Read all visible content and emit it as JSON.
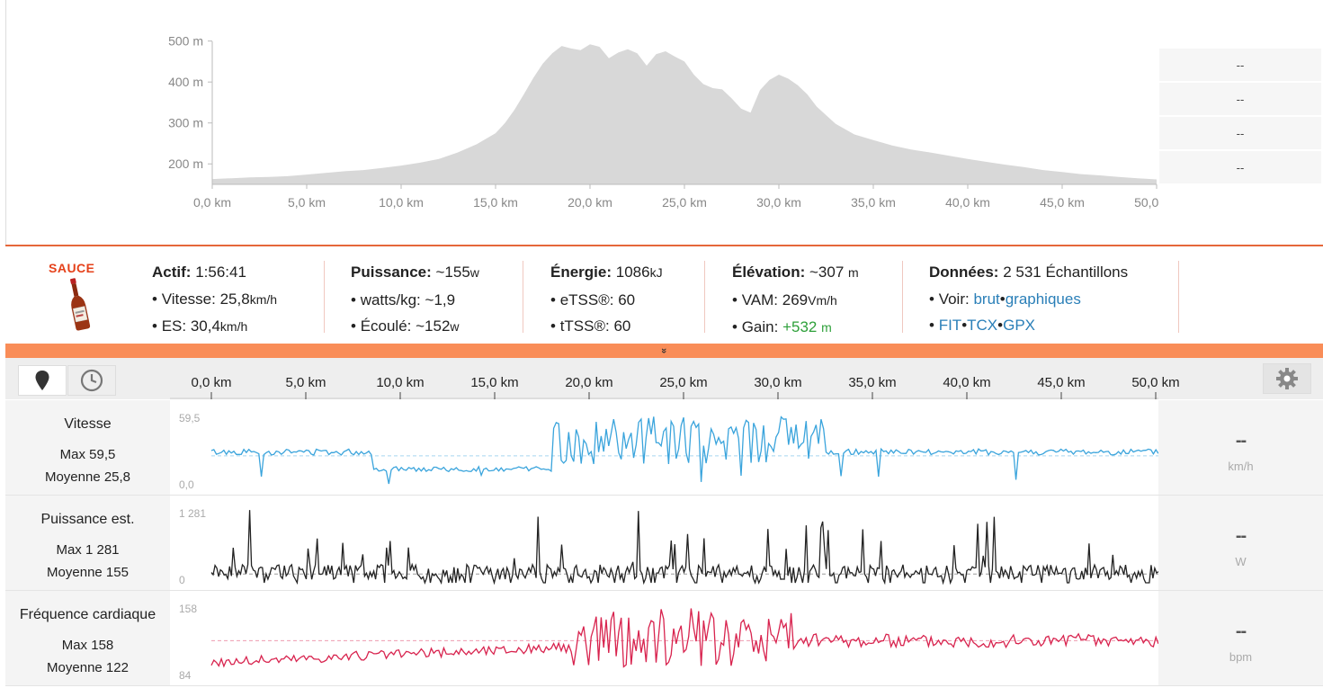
{
  "elevation": {
    "y_ticks": [
      "500 m",
      "400 m",
      "300 m",
      "200 m"
    ],
    "x_ticks": [
      "0,0 km",
      "5,0 km",
      "10,0 km",
      "15,0 km",
      "20,0 km",
      "25,0 km",
      "30,0 km",
      "35,0 km",
      "40,0 km",
      "45,0 km",
      "50,0 km"
    ],
    "side_values": [
      "--",
      "--",
      "--",
      "--"
    ]
  },
  "chart_data": [
    {
      "type": "area",
      "xlabel": "",
      "ylabel": "",
      "x_unit": "km",
      "y_unit": "m",
      "xlim": [
        0,
        50
      ],
      "ylim": [
        150,
        530
      ],
      "x": [
        0,
        1,
        2,
        3,
        4,
        5,
        6,
        7,
        8,
        9,
        10,
        11,
        12,
        13,
        14,
        15,
        15.5,
        16,
        16.5,
        17,
        17.5,
        18,
        18.5,
        19,
        19.5,
        20,
        20.5,
        21,
        21.5,
        22,
        22.5,
        23,
        23.5,
        24,
        24.5,
        25,
        25.5,
        26,
        26.5,
        27,
        27.5,
        28,
        28.5,
        29,
        29.5,
        30,
        30.5,
        31,
        31.5,
        32,
        33,
        34,
        35,
        36,
        37,
        38,
        39,
        40,
        41,
        42,
        43,
        44,
        45,
        46,
        47,
        48,
        49,
        50
      ],
      "values": [
        163,
        165,
        167,
        168,
        170,
        174,
        178,
        182,
        185,
        190,
        196,
        203,
        212,
        228,
        248,
        275,
        300,
        332,
        370,
        410,
        445,
        470,
        488,
        482,
        478,
        492,
        486,
        458,
        472,
        480,
        470,
        440,
        468,
        475,
        462,
        450,
        418,
        395,
        385,
        382,
        360,
        335,
        325,
        380,
        405,
        418,
        408,
        392,
        370,
        340,
        298,
        272,
        258,
        245,
        235,
        228,
        220,
        212,
        205,
        198,
        192,
        185,
        180,
        175,
        172,
        168,
        165,
        162
      ]
    },
    {
      "type": "line",
      "name": "Vitesse",
      "ylim": [
        0,
        59.5
      ],
      "x_unit": "km",
      "y_unit": "km/h",
      "average": 25.8,
      "max": 59.5
    },
    {
      "type": "line",
      "name": "Puissance est.",
      "ylim": [
        0,
        1281
      ],
      "x_unit": "km",
      "y_unit": "W",
      "average": 155,
      "max": 1281
    },
    {
      "type": "line",
      "name": "Fréquence cardiaque",
      "ylim": [
        84,
        158
      ],
      "x_unit": "km",
      "y_unit": "bpm",
      "average": 122,
      "max": 158
    }
  ],
  "brand": {
    "name": "SAUCE"
  },
  "stats": {
    "active": {
      "label": "Actif:",
      "value": "1:56:41"
    },
    "speed": {
      "label": "Vitesse:",
      "value": "25,8",
      "unit": "km/h"
    },
    "es": {
      "label": "ES:",
      "value": "30,4",
      "unit": "km/h"
    },
    "power": {
      "label": "Puissance:",
      "value": "~155",
      "unit": "w"
    },
    "wkg": {
      "label": "watts/kg:",
      "value": "~1,9"
    },
    "elapsed": {
      "label": "Écoulé:",
      "value": "~152",
      "unit": "w"
    },
    "energy": {
      "label": "Énergie:",
      "value": "1086",
      "unit": "kJ"
    },
    "etss": {
      "label": "eTSS®:",
      "value": "60"
    },
    "ttss": {
      "label": "tTSS®:",
      "value": "60"
    },
    "elevation": {
      "label": "Élévation:",
      "value": "~307",
      "unit": "m"
    },
    "vam": {
      "label": "VAM:",
      "value": "269",
      "unit": "Vm/h"
    },
    "gain": {
      "label": "Gain:",
      "value": "+532",
      "unit": "m"
    },
    "data": {
      "label": "Données:",
      "value": "2 531 Échantillons"
    },
    "view": {
      "label": "Voir:",
      "link1": "brut",
      "link2": "graphiques"
    },
    "exports": {
      "fit": "FIT",
      "tcx": "TCX",
      "gpx": "GPX"
    }
  },
  "expander": {
    "icon": "double-chevron-down-icon",
    "glyph": "»"
  },
  "stream_axis": [
    "0,0 km",
    "5,0 km",
    "10,0 km",
    "15,0 km",
    "20,0 km",
    "25,0 km",
    "30,0 km",
    "35,0 km",
    "40,0 km",
    "45,0 km",
    "50,0 km"
  ],
  "toolbar": {
    "map_icon": "map-pin-icon",
    "clock_icon": "clock-icon",
    "gear_icon": "gear-icon"
  },
  "rows": [
    {
      "name": "Vitesse",
      "max": "Max 59,5",
      "avg": "Moyenne 25,8",
      "top": "59,5",
      "bottom": "0,0",
      "value": "--",
      "unit": "km/h",
      "color": "#3aa4dc"
    },
    {
      "name": "Puissance est.",
      "max": "Max 1 281",
      "avg": "Moyenne 155",
      "top": "1 281",
      "bottom": "0",
      "value": "--",
      "unit": "W",
      "color": "#222222"
    },
    {
      "name": "Fréquence cardiaque",
      "max": "Max 158",
      "avg": "Moyenne 122",
      "top": "158",
      "bottom": "84",
      "value": "--",
      "unit": "bpm",
      "color": "#d8234e"
    }
  ]
}
